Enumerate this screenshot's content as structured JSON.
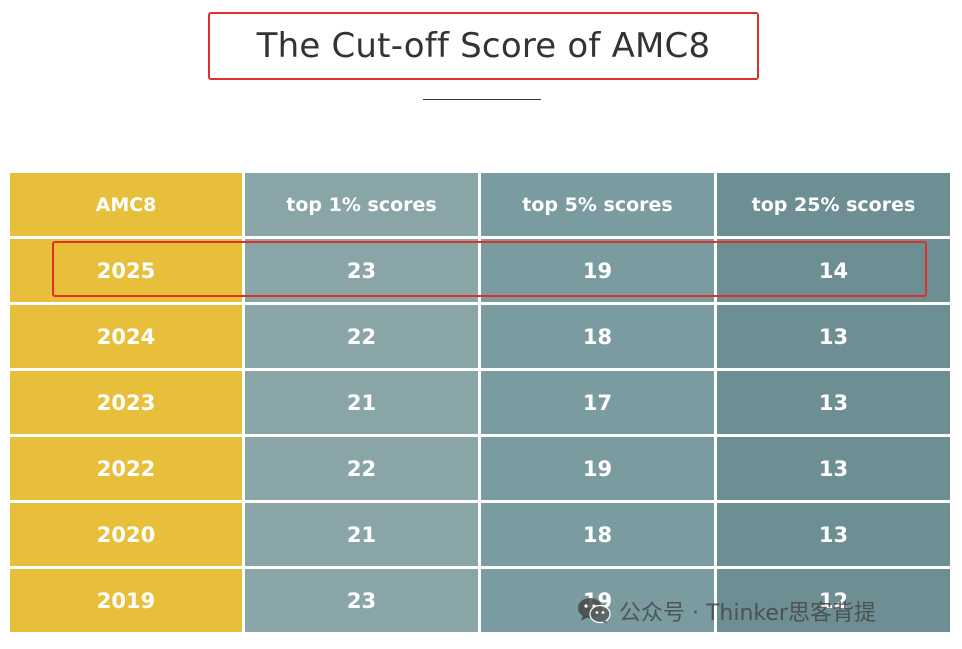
{
  "title": "The Cut-off Score of AMC8",
  "table": {
    "headers": [
      "AMC8",
      "top 1% scores",
      "top 5% scores",
      "top 25% scores"
    ],
    "rows": [
      [
        "2025",
        "23",
        "19",
        "14"
      ],
      [
        "2024",
        "22",
        "18",
        "13"
      ],
      [
        "2023",
        "21",
        "17",
        "13"
      ],
      [
        "2022",
        "22",
        "19",
        "13"
      ],
      [
        "2020",
        "21",
        "18",
        "13"
      ],
      [
        "2019",
        "23",
        "19",
        "12"
      ]
    ],
    "highlighted_row": "2025"
  },
  "watermark": {
    "icon": "wechat-icon",
    "text": "公众号 · Thinker思客背提"
  },
  "colors": {
    "year_column": "#e8bf3a",
    "top1_column": "#8aa5a8",
    "top5_column": "#7a9ca1",
    "top25_column": "#6d8e92",
    "highlight_border": "#e0302c"
  }
}
